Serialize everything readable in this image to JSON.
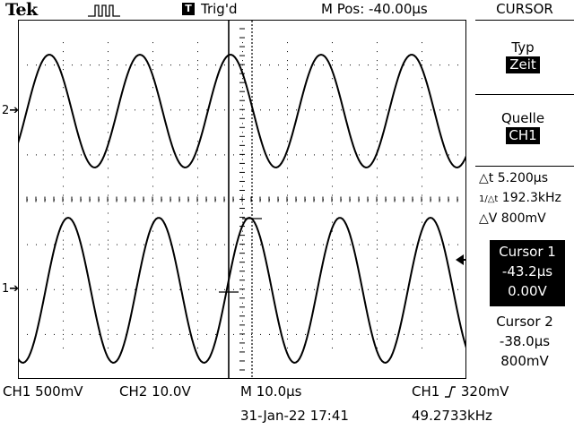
{
  "header": {
    "brand": "Tek",
    "trigger_box": "T",
    "trigger_status": "Trig'd",
    "m_pos": "M Pos: -40.00µs",
    "menu_title": "CURSOR"
  },
  "markers": {
    "ch2": "2",
    "ch1": "1"
  },
  "menu": {
    "typ_label": "Typ",
    "typ_value": "Zeit",
    "quelle_label": "Quelle",
    "quelle_value": "CH1",
    "delta_t": "5.200µs",
    "inv_delta_t": "192.3kHz",
    "delta_v": "800mV",
    "cursor1_label": "Cursor 1",
    "cursor1_time": "-43.2µs",
    "cursor1_volt": "0.00V",
    "cursor2_label": "Cursor 2",
    "cursor2_time": "-38.0µs",
    "cursor2_volt": "800mV"
  },
  "footer": {
    "ch1_scale": "CH1  500mV",
    "ch2_scale": "CH2  10.0V",
    "timebase": "M 10.0µs",
    "trigger": "CH1",
    "trigger_level": "320mV",
    "date": "31-Jan-22 17:41",
    "frequency": "49.2733kHz"
  }
}
